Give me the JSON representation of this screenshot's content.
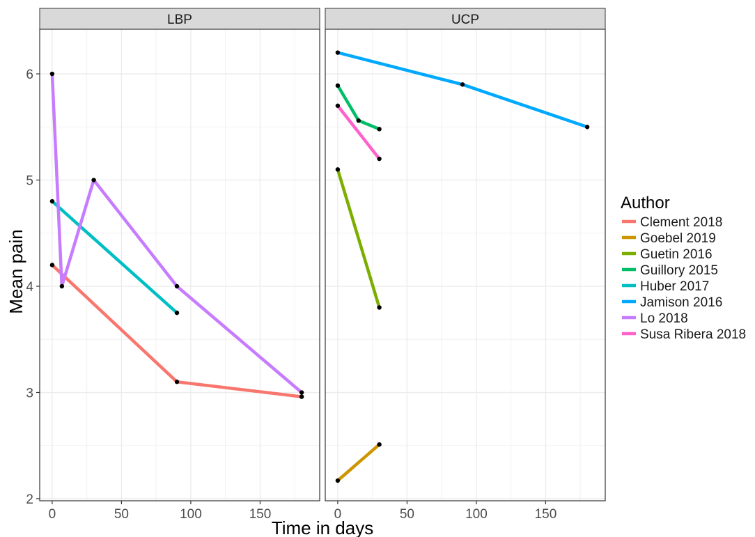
{
  "chart_data": {
    "type": "line",
    "ylabel": "Mean pain",
    "xlabel": "Time in days",
    "xlim": [
      -9,
      193
    ],
    "ylim": [
      1.98,
      6.42
    ],
    "x_ticks": [
      0,
      50,
      100,
      150
    ],
    "y_ticks": [
      2,
      3,
      4,
      5,
      6
    ],
    "grid": true,
    "legend": {
      "title": "Author",
      "placement": "right",
      "entries": [
        {
          "name": "Clement 2018",
          "color": "#F8766D"
        },
        {
          "name": "Goebel 2019",
          "color": "#CD9600"
        },
        {
          "name": "Guetin 2016",
          "color": "#7CAE00"
        },
        {
          "name": "Guillory 2015",
          "color": "#00BE67"
        },
        {
          "name": "Huber 2017",
          "color": "#00BFC4"
        },
        {
          "name": "Jamison 2016",
          "color": "#00A9FF"
        },
        {
          "name": "Lo 2018",
          "color": "#C77CFF"
        },
        {
          "name": "Susa Ribera 2018",
          "color": "#FF61CC"
        }
      ]
    },
    "panels": [
      {
        "label": "LBP",
        "series": [
          {
            "name": "Clement 2018",
            "color": "#F8766D",
            "x": [
              0,
              90,
              180
            ],
            "y": [
              4.2,
              3.1,
              2.96
            ]
          },
          {
            "name": "Huber 2017",
            "color": "#00BFC4",
            "x": [
              0,
              90
            ],
            "y": [
              4.8,
              3.75
            ]
          },
          {
            "name": "Lo 2018",
            "color": "#C77CFF",
            "x": [
              0,
              7,
              30,
              90,
              180
            ],
            "y": [
              6.0,
              4.0,
              5.0,
              4.0,
              3.0
            ]
          }
        ]
      },
      {
        "label": "UCP",
        "series": [
          {
            "name": "Goebel 2019",
            "color": "#CD9600",
            "x": [
              0,
              30
            ],
            "y": [
              2.17,
              2.51
            ]
          },
          {
            "name": "Guetin 2016",
            "color": "#7CAE00",
            "x": [
              0,
              30
            ],
            "y": [
              5.1,
              3.8
            ]
          },
          {
            "name": "Guillory 2015",
            "color": "#00BE67",
            "x": [
              0,
              15,
              30
            ],
            "y": [
              5.89,
              5.56,
              5.48
            ]
          },
          {
            "name": "Jamison 2016",
            "color": "#00A9FF",
            "x": [
              0,
              90,
              180
            ],
            "y": [
              6.2,
              5.9,
              5.5
            ]
          },
          {
            "name": "Susa Ribera 2018",
            "color": "#FF61CC",
            "x": [
              0,
              30
            ],
            "y": [
              5.7,
              5.2
            ]
          }
        ]
      }
    ]
  }
}
